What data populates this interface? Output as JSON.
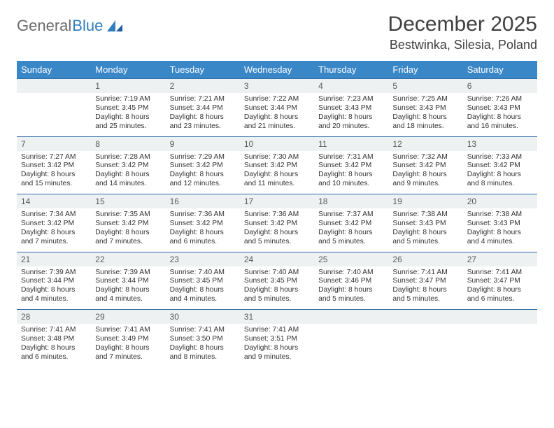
{
  "brand": {
    "first": "General",
    "second": "Blue"
  },
  "title": "December 2025",
  "location": "Bestwinka, Silesia, Poland",
  "colors": {
    "header_bg": "#3a87c8",
    "header_text": "#ffffff",
    "daynum_bg": "#eef1f2",
    "row_border": "#2f6da8",
    "brand_second": "#2f7fbf"
  },
  "weekdays": [
    "Sunday",
    "Monday",
    "Tuesday",
    "Wednesday",
    "Thursday",
    "Friday",
    "Saturday"
  ],
  "weeks": [
    [
      null,
      {
        "n": "1",
        "sr": "Sunrise: 7:19 AM",
        "ss": "Sunset: 3:45 PM",
        "d1": "Daylight: 8 hours",
        "d2": "and 25 minutes."
      },
      {
        "n": "2",
        "sr": "Sunrise: 7:21 AM",
        "ss": "Sunset: 3:44 PM",
        "d1": "Daylight: 8 hours",
        "d2": "and 23 minutes."
      },
      {
        "n": "3",
        "sr": "Sunrise: 7:22 AM",
        "ss": "Sunset: 3:44 PM",
        "d1": "Daylight: 8 hours",
        "d2": "and 21 minutes."
      },
      {
        "n": "4",
        "sr": "Sunrise: 7:23 AM",
        "ss": "Sunset: 3:43 PM",
        "d1": "Daylight: 8 hours",
        "d2": "and 20 minutes."
      },
      {
        "n": "5",
        "sr": "Sunrise: 7:25 AM",
        "ss": "Sunset: 3:43 PM",
        "d1": "Daylight: 8 hours",
        "d2": "and 18 minutes."
      },
      {
        "n": "6",
        "sr": "Sunrise: 7:26 AM",
        "ss": "Sunset: 3:43 PM",
        "d1": "Daylight: 8 hours",
        "d2": "and 16 minutes."
      }
    ],
    [
      {
        "n": "7",
        "sr": "Sunrise: 7:27 AM",
        "ss": "Sunset: 3:42 PM",
        "d1": "Daylight: 8 hours",
        "d2": "and 15 minutes."
      },
      {
        "n": "8",
        "sr": "Sunrise: 7:28 AM",
        "ss": "Sunset: 3:42 PM",
        "d1": "Daylight: 8 hours",
        "d2": "and 14 minutes."
      },
      {
        "n": "9",
        "sr": "Sunrise: 7:29 AM",
        "ss": "Sunset: 3:42 PM",
        "d1": "Daylight: 8 hours",
        "d2": "and 12 minutes."
      },
      {
        "n": "10",
        "sr": "Sunrise: 7:30 AM",
        "ss": "Sunset: 3:42 PM",
        "d1": "Daylight: 8 hours",
        "d2": "and 11 minutes."
      },
      {
        "n": "11",
        "sr": "Sunrise: 7:31 AM",
        "ss": "Sunset: 3:42 PM",
        "d1": "Daylight: 8 hours",
        "d2": "and 10 minutes."
      },
      {
        "n": "12",
        "sr": "Sunrise: 7:32 AM",
        "ss": "Sunset: 3:42 PM",
        "d1": "Daylight: 8 hours",
        "d2": "and 9 minutes."
      },
      {
        "n": "13",
        "sr": "Sunrise: 7:33 AM",
        "ss": "Sunset: 3:42 PM",
        "d1": "Daylight: 8 hours",
        "d2": "and 8 minutes."
      }
    ],
    [
      {
        "n": "14",
        "sr": "Sunrise: 7:34 AM",
        "ss": "Sunset: 3:42 PM",
        "d1": "Daylight: 8 hours",
        "d2": "and 7 minutes."
      },
      {
        "n": "15",
        "sr": "Sunrise: 7:35 AM",
        "ss": "Sunset: 3:42 PM",
        "d1": "Daylight: 8 hours",
        "d2": "and 7 minutes."
      },
      {
        "n": "16",
        "sr": "Sunrise: 7:36 AM",
        "ss": "Sunset: 3:42 PM",
        "d1": "Daylight: 8 hours",
        "d2": "and 6 minutes."
      },
      {
        "n": "17",
        "sr": "Sunrise: 7:36 AM",
        "ss": "Sunset: 3:42 PM",
        "d1": "Daylight: 8 hours",
        "d2": "and 5 minutes."
      },
      {
        "n": "18",
        "sr": "Sunrise: 7:37 AM",
        "ss": "Sunset: 3:42 PM",
        "d1": "Daylight: 8 hours",
        "d2": "and 5 minutes."
      },
      {
        "n": "19",
        "sr": "Sunrise: 7:38 AM",
        "ss": "Sunset: 3:43 PM",
        "d1": "Daylight: 8 hours",
        "d2": "and 5 minutes."
      },
      {
        "n": "20",
        "sr": "Sunrise: 7:38 AM",
        "ss": "Sunset: 3:43 PM",
        "d1": "Daylight: 8 hours",
        "d2": "and 4 minutes."
      }
    ],
    [
      {
        "n": "21",
        "sr": "Sunrise: 7:39 AM",
        "ss": "Sunset: 3:44 PM",
        "d1": "Daylight: 8 hours",
        "d2": "and 4 minutes."
      },
      {
        "n": "22",
        "sr": "Sunrise: 7:39 AM",
        "ss": "Sunset: 3:44 PM",
        "d1": "Daylight: 8 hours",
        "d2": "and 4 minutes."
      },
      {
        "n": "23",
        "sr": "Sunrise: 7:40 AM",
        "ss": "Sunset: 3:45 PM",
        "d1": "Daylight: 8 hours",
        "d2": "and 4 minutes."
      },
      {
        "n": "24",
        "sr": "Sunrise: 7:40 AM",
        "ss": "Sunset: 3:45 PM",
        "d1": "Daylight: 8 hours",
        "d2": "and 5 minutes."
      },
      {
        "n": "25",
        "sr": "Sunrise: 7:40 AM",
        "ss": "Sunset: 3:46 PM",
        "d1": "Daylight: 8 hours",
        "d2": "and 5 minutes."
      },
      {
        "n": "26",
        "sr": "Sunrise: 7:41 AM",
        "ss": "Sunset: 3:47 PM",
        "d1": "Daylight: 8 hours",
        "d2": "and 5 minutes."
      },
      {
        "n": "27",
        "sr": "Sunrise: 7:41 AM",
        "ss": "Sunset: 3:47 PM",
        "d1": "Daylight: 8 hours",
        "d2": "and 6 minutes."
      }
    ],
    [
      {
        "n": "28",
        "sr": "Sunrise: 7:41 AM",
        "ss": "Sunset: 3:48 PM",
        "d1": "Daylight: 8 hours",
        "d2": "and 6 minutes."
      },
      {
        "n": "29",
        "sr": "Sunrise: 7:41 AM",
        "ss": "Sunset: 3:49 PM",
        "d1": "Daylight: 8 hours",
        "d2": "and 7 minutes."
      },
      {
        "n": "30",
        "sr": "Sunrise: 7:41 AM",
        "ss": "Sunset: 3:50 PM",
        "d1": "Daylight: 8 hours",
        "d2": "and 8 minutes."
      },
      {
        "n": "31",
        "sr": "Sunrise: 7:41 AM",
        "ss": "Sunset: 3:51 PM",
        "d1": "Daylight: 8 hours",
        "d2": "and 9 minutes."
      },
      null,
      null,
      null
    ]
  ]
}
